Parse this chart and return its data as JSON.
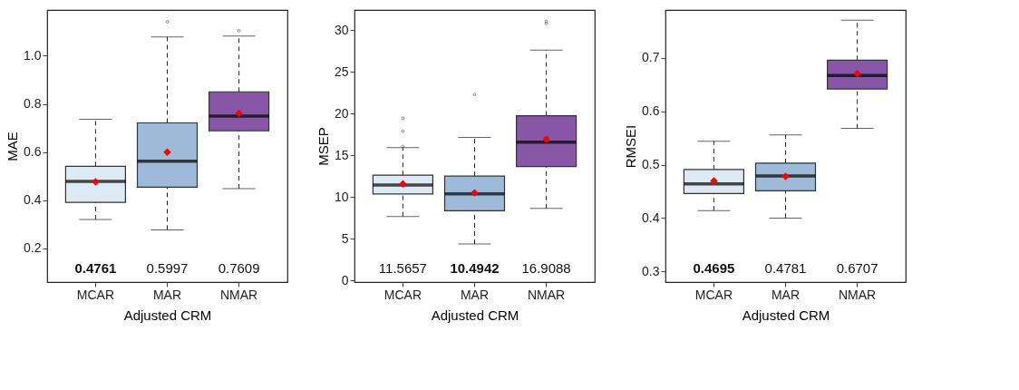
{
  "chart_data": [
    {
      "type": "box",
      "xlabel": "Adjusted CRM",
      "ylabel": "MAE",
      "categories": [
        "MCAR",
        "MAR",
        "NMAR"
      ],
      "colors": [
        "#deeaf3",
        "#9ebad9",
        "#8856a7"
      ],
      "ylim": [
        0.06,
        1.19
      ],
      "yticks": [
        0.2,
        0.4,
        0.6,
        0.8,
        {
          "value": 1,
          "label": "1.0"
        }
      ],
      "grid": false,
      "boxes": [
        {
          "low": 0.32,
          "q1": 0.391,
          "median": 0.478,
          "q3": 0.541,
          "high": 0.736,
          "mean": 0.4761
        },
        {
          "low": 0.277,
          "q1": 0.454,
          "median": 0.562,
          "q3": 0.721,
          "high": 1.078,
          "mean": 0.5997,
          "outliers": [
            1.141
          ]
        },
        {
          "low": 0.448,
          "q1": 0.688,
          "median": 0.749,
          "q3": 0.85,
          "high": 1.082,
          "mean": 0.7609,
          "outliers": [
            1.104
          ]
        }
      ],
      "annotations": [
        "0.4761",
        "0.5997",
        "0.7609"
      ]
    },
    {
      "type": "box",
      "xlabel": "Adjusted CRM",
      "ylabel": "MSEP",
      "categories": [
        "MCAR",
        "MAR",
        "NMAR"
      ],
      "colors": [
        "#deeaf3",
        "#9ebad9",
        "#8856a7"
      ],
      "ylim": [
        -0.2,
        32.4
      ],
      "yticks": [
        0,
        5,
        10,
        15,
        20,
        25,
        30
      ],
      "grid": false,
      "boxes": [
        {
          "low": 7.66,
          "q1": 10.36,
          "median": 11.44,
          "q3": 12.6,
          "high": 15.9,
          "mean": 11.5657,
          "outliers": [
            16.05,
            17.87,
            19.43
          ]
        },
        {
          "low": 4.37,
          "q1": 8.35,
          "median": 10.36,
          "q3": 12.49,
          "high": 17.13,
          "mean": 10.4942,
          "outliers": [
            22.28
          ]
        },
        {
          "low": 8.62,
          "q1": 13.65,
          "median": 16.56,
          "q3": 19.73,
          "high": 27.6,
          "mean": 16.9088,
          "outliers": [
            30.78,
            31.02
          ]
        }
      ],
      "annotations": [
        "11.5657",
        "10.4942",
        "16.9088"
      ]
    },
    {
      "type": "box",
      "xlabel": "Adjusted CRM",
      "ylabel": "RMSEI",
      "categories": [
        "MCAR",
        "MAR",
        "NMAR"
      ],
      "colors": [
        "#deeaf3",
        "#9ebad9",
        "#8856a7"
      ],
      "ylim": [
        0.28,
        0.79
      ],
      "yticks": [
        0.3,
        0.4,
        0.5,
        0.6,
        0.7
      ],
      "grid": false,
      "boxes": [
        {
          "low": 0.414,
          "q1": 0.446,
          "median": 0.464,
          "q3": 0.491,
          "high": 0.544,
          "mean": 0.4695
        },
        {
          "low": 0.4,
          "q1": 0.451,
          "median": 0.479,
          "q3": 0.503,
          "high": 0.556,
          "mean": 0.4781
        },
        {
          "low": 0.568,
          "q1": 0.642,
          "median": 0.667,
          "q3": 0.696,
          "high": 0.771,
          "mean": 0.6707
        }
      ],
      "annotations": [
        "0.4695",
        "0.4781",
        "0.6707"
      ]
    }
  ]
}
